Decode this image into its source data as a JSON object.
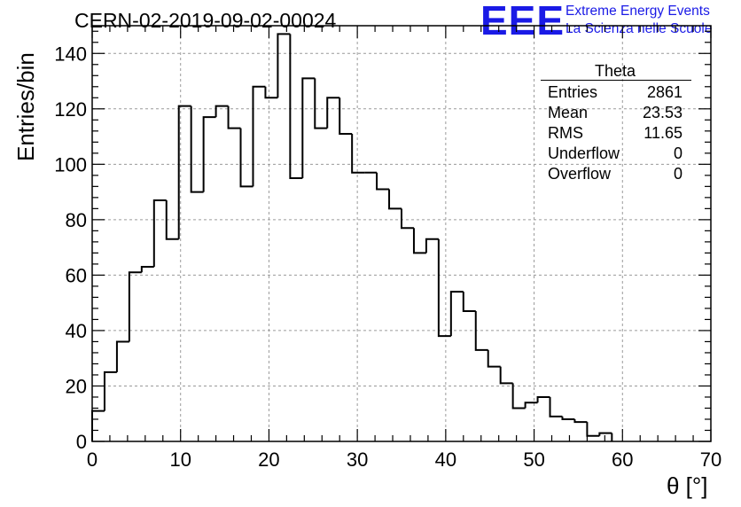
{
  "header": {
    "run_title": "CERN-02-2019-09-02-00024",
    "logo_text": "EEE",
    "logo_line1": "Extreme Energy Events",
    "logo_line2": "La Scienza nelle Scuole",
    "logo_color": "#1a1ae6"
  },
  "stats_box": {
    "title": "Theta",
    "rows": [
      {
        "label": "Entries",
        "value": "2861"
      },
      {
        "label": "Mean",
        "value": "23.53"
      },
      {
        "label": "RMS",
        "value": "11.65"
      },
      {
        "label": "Underflow",
        "value": "0"
      },
      {
        "label": "Overflow",
        "value": "0"
      }
    ]
  },
  "chart_data": {
    "type": "bar",
    "style": "step-histogram",
    "title": "CERN-02-2019-09-02-00024",
    "xlabel": "θ [°]",
    "ylabel": "Entries/bin",
    "xlim": [
      0,
      70
    ],
    "ylim": [
      0,
      150
    ],
    "bin_width": 1.4,
    "bin_edges_start": 0,
    "values": [
      11,
      25,
      36,
      61,
      63,
      87,
      73,
      121,
      90,
      117,
      121,
      113,
      92,
      128,
      124,
      147,
      95,
      131,
      113,
      124,
      111,
      97,
      97,
      91,
      84,
      77,
      68,
      73,
      38,
      54,
      47,
      33,
      27,
      21,
      12,
      14,
      16,
      9,
      8,
      7,
      2,
      3
    ],
    "xticks": [
      0,
      10,
      20,
      30,
      40,
      50,
      60,
      70
    ],
    "xtick_labels": [
      "0",
      "10",
      "20",
      "30",
      "40",
      "50",
      "60",
      "70"
    ],
    "yticks": [
      0,
      20,
      40,
      60,
      80,
      100,
      120,
      140
    ],
    "ytick_labels": [
      "0",
      "20",
      "40",
      "60",
      "80",
      "100",
      "120",
      "140"
    ],
    "grid": true,
    "line_color": "#000000"
  }
}
